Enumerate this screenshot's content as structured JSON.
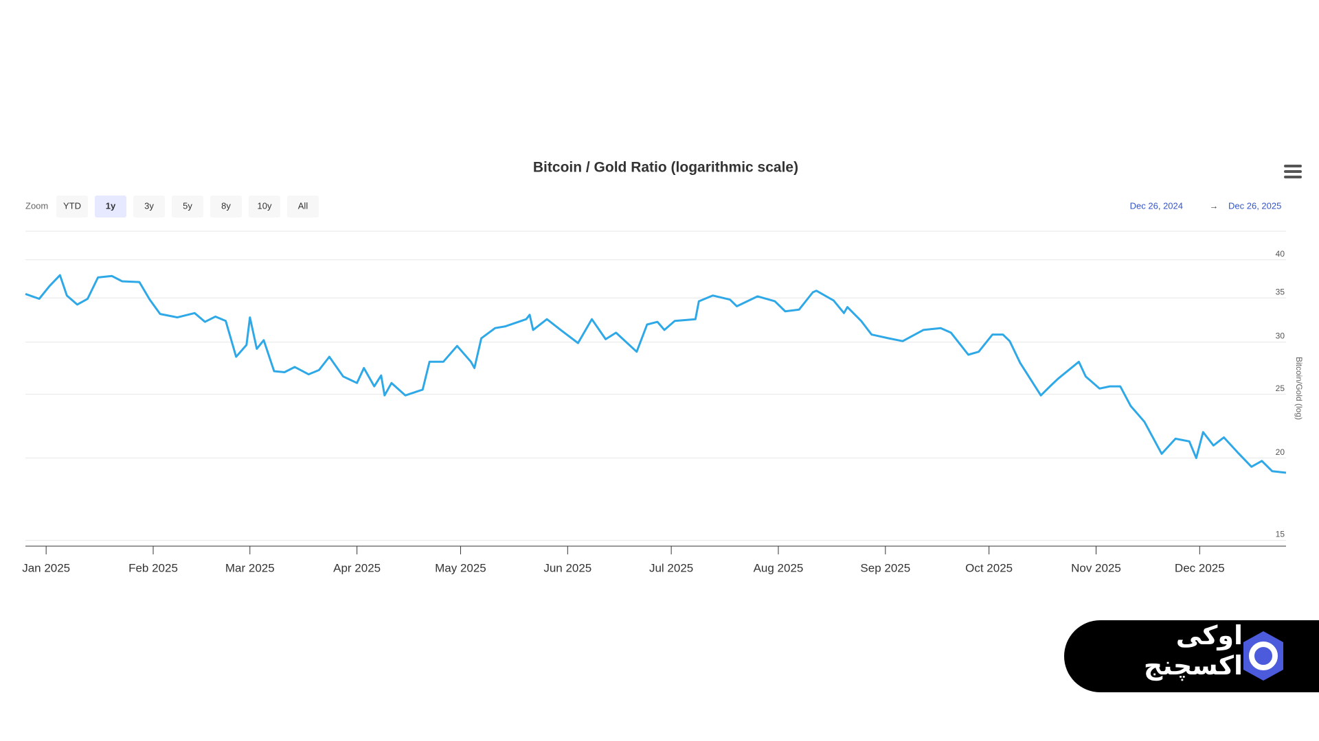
{
  "chart_data": {
    "type": "line",
    "title": "Bitcoin / Gold Ratio (logarithmic scale)",
    "y_label": "Bitcoin/Gold (log)",
    "color": "#2ea8e6",
    "log_scale": true,
    "grid": true,
    "x": [
      "2024-12-26",
      "2024-12-30",
      "2025-01-02",
      "2025-01-05",
      "2025-01-07",
      "2025-01-10",
      "2025-01-13",
      "2025-01-16",
      "2025-01-20",
      "2025-01-23",
      "2025-01-28",
      "2025-01-31",
      "2025-02-03",
      "2025-02-08",
      "2025-02-13",
      "2025-02-16",
      "2025-02-19",
      "2025-02-22",
      "2025-02-25",
      "2025-02-28",
      "2025-03-01",
      "2025-03-03",
      "2025-03-05",
      "2025-03-08",
      "2025-03-11",
      "2025-03-14",
      "2025-03-18",
      "2025-03-21",
      "2025-03-24",
      "2025-03-28",
      "2025-04-01",
      "2025-04-03",
      "2025-04-06",
      "2025-04-08",
      "2025-04-09",
      "2025-04-11",
      "2025-04-15",
      "2025-04-19",
      "2025-04-20",
      "2025-04-22",
      "2025-04-26",
      "2025-04-30",
      "2025-05-04",
      "2025-05-05",
      "2025-05-07",
      "2025-05-11",
      "2025-05-14",
      "2025-05-20",
      "2025-05-21",
      "2025-05-22",
      "2025-05-26",
      "2025-05-30",
      "2025-06-04",
      "2025-06-08",
      "2025-06-12",
      "2025-06-15",
      "2025-06-21",
      "2025-06-24",
      "2025-06-27",
      "2025-06-29",
      "2025-07-02",
      "2025-07-08",
      "2025-07-09",
      "2025-07-13",
      "2025-07-18",
      "2025-07-20",
      "2025-07-26",
      "2025-07-31",
      "2025-08-03",
      "2025-08-07",
      "2025-08-11",
      "2025-08-12",
      "2025-08-17",
      "2025-08-20",
      "2025-08-21",
      "2025-08-25",
      "2025-08-28",
      "2025-09-02",
      "2025-09-06",
      "2025-09-12",
      "2025-09-17",
      "2025-09-20",
      "2025-09-25",
      "2025-09-28",
      "2025-10-02",
      "2025-10-05",
      "2025-10-07",
      "2025-10-10",
      "2025-10-16",
      "2025-10-19",
      "2025-10-21",
      "2025-10-27",
      "2025-10-29",
      "2025-11-02",
      "2025-11-05",
      "2025-11-08",
      "2025-11-11",
      "2025-11-15",
      "2025-11-20",
      "2025-11-24",
      "2025-11-28",
      "2025-11-30",
      "2025-12-02",
      "2025-12-05",
      "2025-12-08",
      "2025-12-12",
      "2025-12-16",
      "2025-12-19",
      "2025-12-22",
      "2025-12-26"
    ],
    "values": [
      35.5,
      34.9,
      36.5,
      37.9,
      35.3,
      34.2,
      34.9,
      37.6,
      37.8,
      37.1,
      37.0,
      34.8,
      33.1,
      32.7,
      33.2,
      32.2,
      32.8,
      32.3,
      28.5,
      29.7,
      32.7,
      29.3,
      30.2,
      27.1,
      27.0,
      27.5,
      26.8,
      27.2,
      28.5,
      26.6,
      26.0,
      27.4,
      25.7,
      26.7,
      24.9,
      26.0,
      24.9,
      25.3,
      25.4,
      28.0,
      28.0,
      29.6,
      28.0,
      27.4,
      30.4,
      31.5,
      31.7,
      32.5,
      33.0,
      31.3,
      32.5,
      31.3,
      29.9,
      32.5,
      30.3,
      31.0,
      29.0,
      31.9,
      32.2,
      31.3,
      32.3,
      32.5,
      34.6,
      35.3,
      34.8,
      34.0,
      35.2,
      34.6,
      33.4,
      33.6,
      35.7,
      35.9,
      34.7,
      33.2,
      33.9,
      32.3,
      30.8,
      30.4,
      30.1,
      31.3,
      31.5,
      31.0,
      28.7,
      29.0,
      30.8,
      30.8,
      30.1,
      27.9,
      24.9,
      25.8,
      26.4,
      28.0,
      26.6,
      25.5,
      25.7,
      25.7,
      24.0,
      22.7,
      20.3,
      21.4,
      21.2,
      20.0,
      21.9,
      20.9,
      21.5,
      20.4,
      19.4,
      19.8,
      19.1,
      19.0
    ],
    "xlim": [
      "2024-12-26",
      "2025-12-26"
    ],
    "xticks": [
      {
        "value": "2025-01-01",
        "label": "Jan 2025"
      },
      {
        "value": "2025-02-01",
        "label": "Feb 2025"
      },
      {
        "value": "2025-03-01",
        "label": "Mar 2025"
      },
      {
        "value": "2025-04-01",
        "label": "Apr 2025"
      },
      {
        "value": "2025-05-01",
        "label": "May 2025"
      },
      {
        "value": "2025-06-01",
        "label": "Jun 2025"
      },
      {
        "value": "2025-07-01",
        "label": "Jul 2025"
      },
      {
        "value": "2025-08-01",
        "label": "Aug 2025"
      },
      {
        "value": "2025-09-01",
        "label": "Sep 2025"
      },
      {
        "value": "2025-10-01",
        "label": "Oct 2025"
      },
      {
        "value": "2025-11-01",
        "label": "Nov 2025"
      },
      {
        "value": "2025-12-01",
        "label": "Dec 2025"
      }
    ],
    "ylim": [
      14.7,
      44.2
    ],
    "yticks": [
      15,
      20,
      25,
      30,
      35,
      40
    ]
  },
  "ui": {
    "zoom_label": "Zoom",
    "zoom_buttons": [
      "YTD",
      "1y",
      "3y",
      "5y",
      "8y",
      "10y",
      "All"
    ],
    "active_zoom": 1,
    "range_from": "Dec 26, 2024",
    "range_arrow": "→",
    "range_to": "Dec 26, 2025",
    "brand": "اوکی اکسچنج"
  }
}
